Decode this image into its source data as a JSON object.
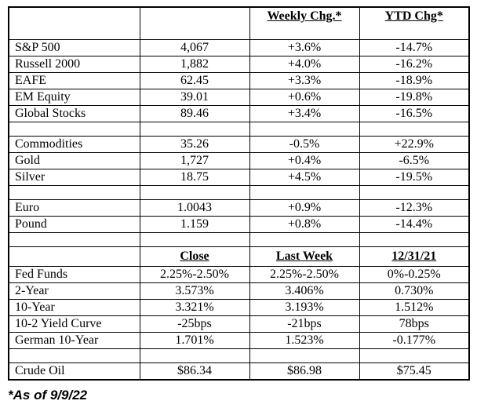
{
  "colors": {
    "border": "#000000",
    "text": "#000000",
    "background": "#ffffff"
  },
  "table": {
    "rows": [
      {
        "type": "header",
        "variant": "top",
        "cells": [
          "",
          "",
          "Weekly Chg.*",
          "YTD Chg*"
        ]
      },
      {
        "type": "data",
        "cells": [
          "S&P 500",
          "4,067",
          "+3.6%",
          "-14.7%"
        ]
      },
      {
        "type": "data",
        "cells": [
          "Russell 2000",
          "1,882",
          "+4.0%",
          "-16.2%"
        ]
      },
      {
        "type": "data",
        "cells": [
          "EAFE",
          "62.45",
          "+3.3%",
          "-18.9%"
        ]
      },
      {
        "type": "data",
        "cells": [
          "EM Equity",
          "39.01",
          "+0.6%",
          "-19.8%"
        ]
      },
      {
        "type": "data",
        "cells": [
          "Global Stocks",
          "89.46",
          "+3.4%",
          "-16.5%"
        ]
      },
      {
        "type": "spacer"
      },
      {
        "type": "data",
        "cells": [
          "Commodities",
          "35.26",
          "-0.5%",
          "+22.9%"
        ]
      },
      {
        "type": "data",
        "cells": [
          "Gold",
          "1,727",
          "+0.4%",
          "-6.5%"
        ]
      },
      {
        "type": "data",
        "cells": [
          "Silver",
          "18.75",
          "+4.5%",
          "-19.5%"
        ]
      },
      {
        "type": "spacer"
      },
      {
        "type": "data",
        "cells": [
          "Euro",
          "1.0043",
          "+0.9%",
          "-12.3%"
        ]
      },
      {
        "type": "data",
        "cells": [
          "Pound",
          "1.159",
          "+0.8%",
          "-14.4%"
        ]
      },
      {
        "type": "spacer"
      },
      {
        "type": "header",
        "variant": "mid",
        "cells": [
          "",
          "Close",
          "Last Week",
          "12/31/21"
        ]
      },
      {
        "type": "data",
        "cells": [
          "Fed Funds",
          "2.25%-2.50%",
          "2.25%-2.50%",
          "0%-0.25%"
        ]
      },
      {
        "type": "data",
        "cells": [
          "2-Year",
          "3.573%",
          "3.406%",
          "0.730%"
        ]
      },
      {
        "type": "data",
        "cells": [
          "10-Year",
          "3.321%",
          "3.193%",
          "1.512%"
        ]
      },
      {
        "type": "data",
        "cells": [
          "10-2 Yield Curve",
          "-25bps",
          "-21bps",
          "78bps"
        ]
      },
      {
        "type": "data",
        "cells": [
          "German 10-Year",
          "1.701%",
          "1.523%",
          "-0.177%"
        ]
      },
      {
        "type": "spacer"
      },
      {
        "type": "data",
        "cells": [
          "Crude Oil",
          "$86.34",
          "$86.98",
          "$75.45"
        ]
      }
    ]
  },
  "footnote": "*As of 9/9/22"
}
